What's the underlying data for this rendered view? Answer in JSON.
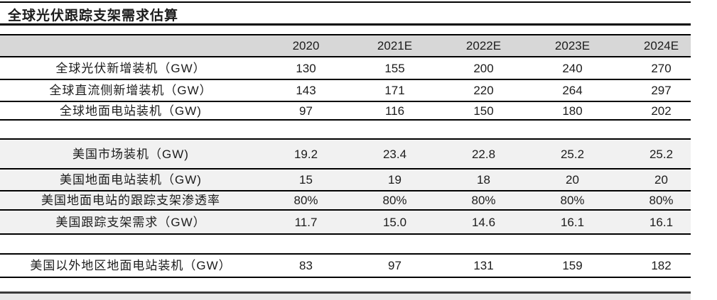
{
  "title": "全球光伏跟踪支架需求估算",
  "colors": {
    "header_bg": "#d7d7d7",
    "us_section_bg": "#f1f1f1",
    "rule": "#000000",
    "bottom_band": "#e8e8e8"
  },
  "table": {
    "year_headers": [
      "2020",
      "2021E",
      "2022E",
      "2023E",
      "2024E"
    ],
    "rows": [
      {
        "label": "全球光伏新增装机（GW）",
        "values": [
          "130",
          "155",
          "200",
          "240",
          "270"
        ]
      },
      {
        "label": "全球直流侧新增装机（GW）",
        "values": [
          "143",
          "171",
          "220",
          "264",
          "297"
        ]
      },
      {
        "label": "全球地面电站装机（GW)",
        "values": [
          "97",
          "116",
          "150",
          "180",
          "202"
        ]
      },
      {
        "label": "美国市场装机（GW)",
        "values": [
          "19.2",
          "23.4",
          "22.8",
          "25.2",
          "25.2"
        ]
      },
      {
        "label": "美国地面电站装机（GW)",
        "values": [
          "15",
          "19",
          "18",
          "20",
          "20"
        ]
      },
      {
        "label": "美国地面电站的跟踪支架渗透率",
        "values": [
          "80%",
          "80%",
          "80%",
          "80%",
          "80%"
        ]
      },
      {
        "label": "美国跟踪支架需求（GW）",
        "values": [
          "11.7",
          "15.0",
          "14.6",
          "16.1",
          "16.1"
        ]
      },
      {
        "label": "美国以外地区地面电站装机（GW）",
        "values": [
          "83",
          "97",
          "131",
          "159",
          "182"
        ]
      }
    ]
  }
}
